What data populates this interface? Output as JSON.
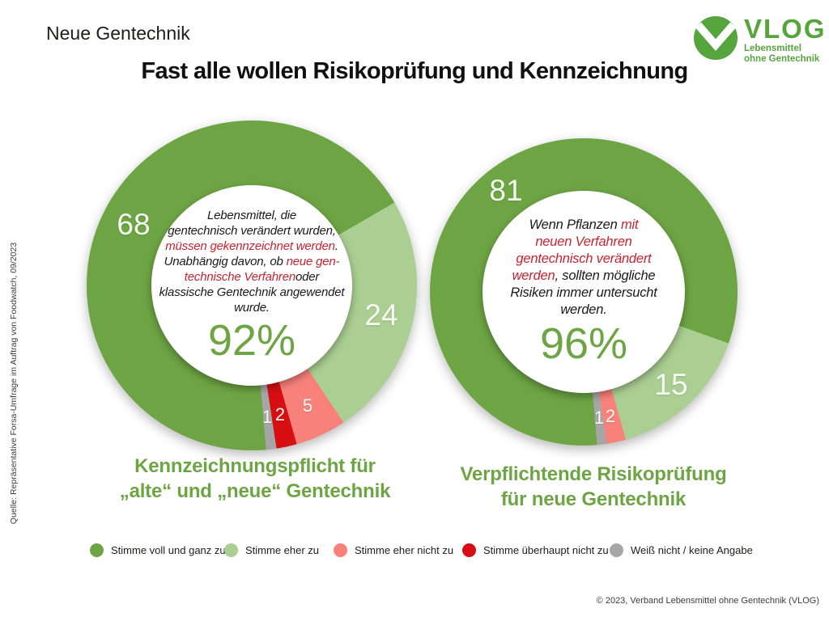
{
  "header": {
    "kicker": "Neue Gentechnik",
    "title": "Fast alle wollen Risikoprüfung und Kennzeichnung",
    "logo": {
      "name": "VLOG",
      "tagline_line1": "Lebensmittel",
      "tagline_line2": "ohne Gentechnik"
    }
  },
  "source_note": "Quelle: Repräsentative Forsa-Umfrage im Auftrag von Foodwatch, 09/2023",
  "copyright": "© 2023, Verband Lebensmittel ohne Gentechnik (VLOG)",
  "colors": {
    "agree_full": "#6EA544",
    "agree_some": "#ABCF92",
    "disagree_some": "#F8827B",
    "disagree_full": "#D80F12",
    "no_answer": "#A6A6A6",
    "accent_green": "#6EA544",
    "logo_green": "#56A43C",
    "red_text": "#C5232F"
  },
  "legend": {
    "items": [
      {
        "label": "Stimme voll und ganz zu",
        "color_key": "agree_full"
      },
      {
        "label": "Stimme eher zu",
        "color_key": "agree_some"
      },
      {
        "label": "Stimme eher nicht zu",
        "color_key": "disagree_some"
      },
      {
        "label": "Stimme überhaupt nicht zu",
        "color_key": "disagree_full"
      },
      {
        "label": "Weiß nicht / keine Angabe",
        "color_key": "no_answer"
      }
    ]
  },
  "chart_data": [
    {
      "type": "pie",
      "variant": "donut",
      "start_angle_deg": 175,
      "title": "Kennzeichnungspflicht für\n„alte“ und „neue“ Gentechnik",
      "center_percent": "92%",
      "center_text_runs": [
        {
          "text": "Lebensmittel, die\ngentechnisch verändert wurden,\n",
          "color": "black"
        },
        {
          "text": "müssen gekennzeichnet werden",
          "color": "red"
        },
        {
          "text": ".\nUnabhängig davon, ob ",
          "color": "black"
        },
        {
          "text": "neue gen-\ntechnische Verfahren",
          "color": "red"
        },
        {
          "text": "oder\nklassische Gentechnik angewendet\nwurde.",
          "color": "black"
        }
      ],
      "segments": [
        {
          "label": "Stimme voll und ganz zu",
          "value": 68,
          "color_key": "agree_full"
        },
        {
          "label": "Stimme eher zu",
          "value": 24,
          "color_key": "agree_some"
        },
        {
          "label": "Stimme eher nicht zu",
          "value": 5,
          "color_key": "disagree_some"
        },
        {
          "label": "Stimme überhaupt nicht zu",
          "value": 2,
          "color_key": "disagree_full"
        },
        {
          "label": "Weiß nicht / keine Angabe",
          "value": 1,
          "color_key": "no_answer"
        }
      ]
    },
    {
      "type": "pie",
      "variant": "donut",
      "start_angle_deg": 175,
      "title": "Verpflichtende Risikoprüfung\nfür neue Gentechnik",
      "center_percent": "96%",
      "center_text_runs": [
        {
          "text": "Wenn Pflanzen ",
          "color": "black"
        },
        {
          "text": "mit\nneuen Verfahren\ngentechnisch verändert\nwerden",
          "color": "red"
        },
        {
          "text": ", sollten mögliche\nRisiken immer untersucht\nwerden.",
          "color": "black"
        }
      ],
      "segments": [
        {
          "label": "Stimme voll und ganz zu",
          "value": 81,
          "color_key": "agree_full"
        },
        {
          "label": "Stimme eher zu",
          "value": 15,
          "color_key": "agree_some"
        },
        {
          "label": "Stimme eher nicht zu",
          "value": 2,
          "color_key": "disagree_some"
        },
        {
          "label": "Weiß nicht / keine Angabe",
          "value": 1,
          "color_key": "no_answer"
        }
      ]
    }
  ]
}
